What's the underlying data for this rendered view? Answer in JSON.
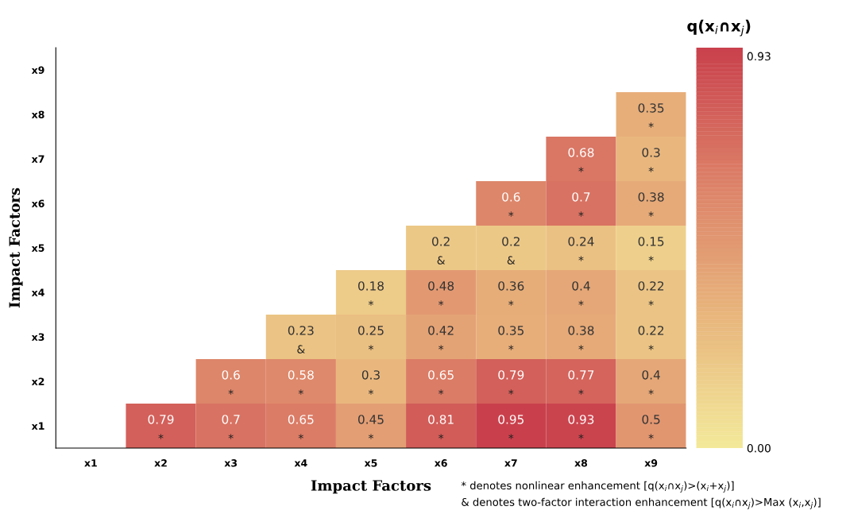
{
  "chart_data": {
    "type": "heatmap",
    "xlabel": "Impact Factors",
    "ylabel": "Impact Factors",
    "clabel": "q(x$_{i}$∩x$_{j}$)",
    "categories": [
      "x1",
      "x2",
      "x3",
      "x4",
      "x5",
      "x6",
      "x7",
      "x8",
      "x9"
    ],
    "y_categories": [
      "x9",
      "x8",
      "x7",
      "x6",
      "x5",
      "x4",
      "x3",
      "x2",
      "x1"
    ],
    "cells": [
      [
        null,
        null,
        null,
        null,
        null,
        null,
        null,
        null,
        null
      ],
      [
        null,
        null,
        null,
        null,
        null,
        null,
        null,
        null,
        0.35
      ],
      [
        null,
        null,
        null,
        null,
        null,
        null,
        null,
        0.68,
        0.3
      ],
      [
        null,
        null,
        null,
        null,
        null,
        null,
        0.6,
        0.7,
        0.38
      ],
      [
        null,
        null,
        null,
        null,
        null,
        0.2,
        0.2,
        0.24,
        0.15
      ],
      [
        null,
        null,
        null,
        null,
        0.18,
        0.48,
        0.36,
        0.4,
        0.22
      ],
      [
        null,
        null,
        null,
        0.23,
        0.25,
        0.42,
        0.35,
        0.38,
        0.22
      ],
      [
        null,
        null,
        0.6,
        0.58,
        0.3,
        0.65,
        0.79,
        0.77,
        0.4
      ],
      [
        null,
        0.79,
        0.7,
        0.65,
        0.45,
        0.81,
        0.95,
        0.93,
        0.5
      ]
    ],
    "cell_labels": [
      [
        null,
        null,
        null,
        null,
        null,
        null,
        null,
        null,
        null
      ],
      [
        null,
        null,
        null,
        null,
        null,
        null,
        null,
        null,
        "0.35\n*"
      ],
      [
        null,
        null,
        null,
        null,
        null,
        null,
        null,
        "0.68\n*",
        "0.3\n*"
      ],
      [
        null,
        null,
        null,
        null,
        null,
        null,
        "0.6\n*",
        "0.7\n*",
        "0.38\n*"
      ],
      [
        null,
        null,
        null,
        null,
        null,
        "0.2\n&",
        "0.2\n&",
        "0.24\n*",
        "0.15\n*"
      ],
      [
        null,
        null,
        null,
        null,
        "0.18\n*",
        "0.48\n*",
        "0.36\n*",
        "0.4\n*",
        "0.22\n*"
      ],
      [
        null,
        null,
        null,
        "0.23\n&",
        "0.25\n*",
        "0.42\n*",
        "0.35\n*",
        "0.38\n*",
        "0.22\n*"
      ],
      [
        null,
        null,
        "0.6\n*",
        "0.58\n*",
        "0.3\n*",
        "0.65\n*",
        "0.79\n*",
        "0.77\n*",
        "0.4\n*"
      ],
      [
        null,
        "0.79\n*",
        "0.7\n*",
        "0.65\n*",
        "0.45\n*",
        "0.81\n*",
        "0.95\n*",
        "0.93\n*",
        "0.5\n*"
      ]
    ],
    "clim": [
      0,
      0.95
    ],
    "cticks": [
      {
        "value": 0,
        "label": "0.00"
      },
      0.93
    ],
    "grid": false,
    "annotations": [
      "* denotes nonlinear enhancement [q(x$_{i}$∩x$_{j}$)>(x$_{i}$+x$_{j}$)]",
      "& denotes two-factor interaction enhancement [q(x$_{i}$∩x$_{j}$)>Max (x$_{i}$,x$_{j}$)]"
    ]
  }
}
